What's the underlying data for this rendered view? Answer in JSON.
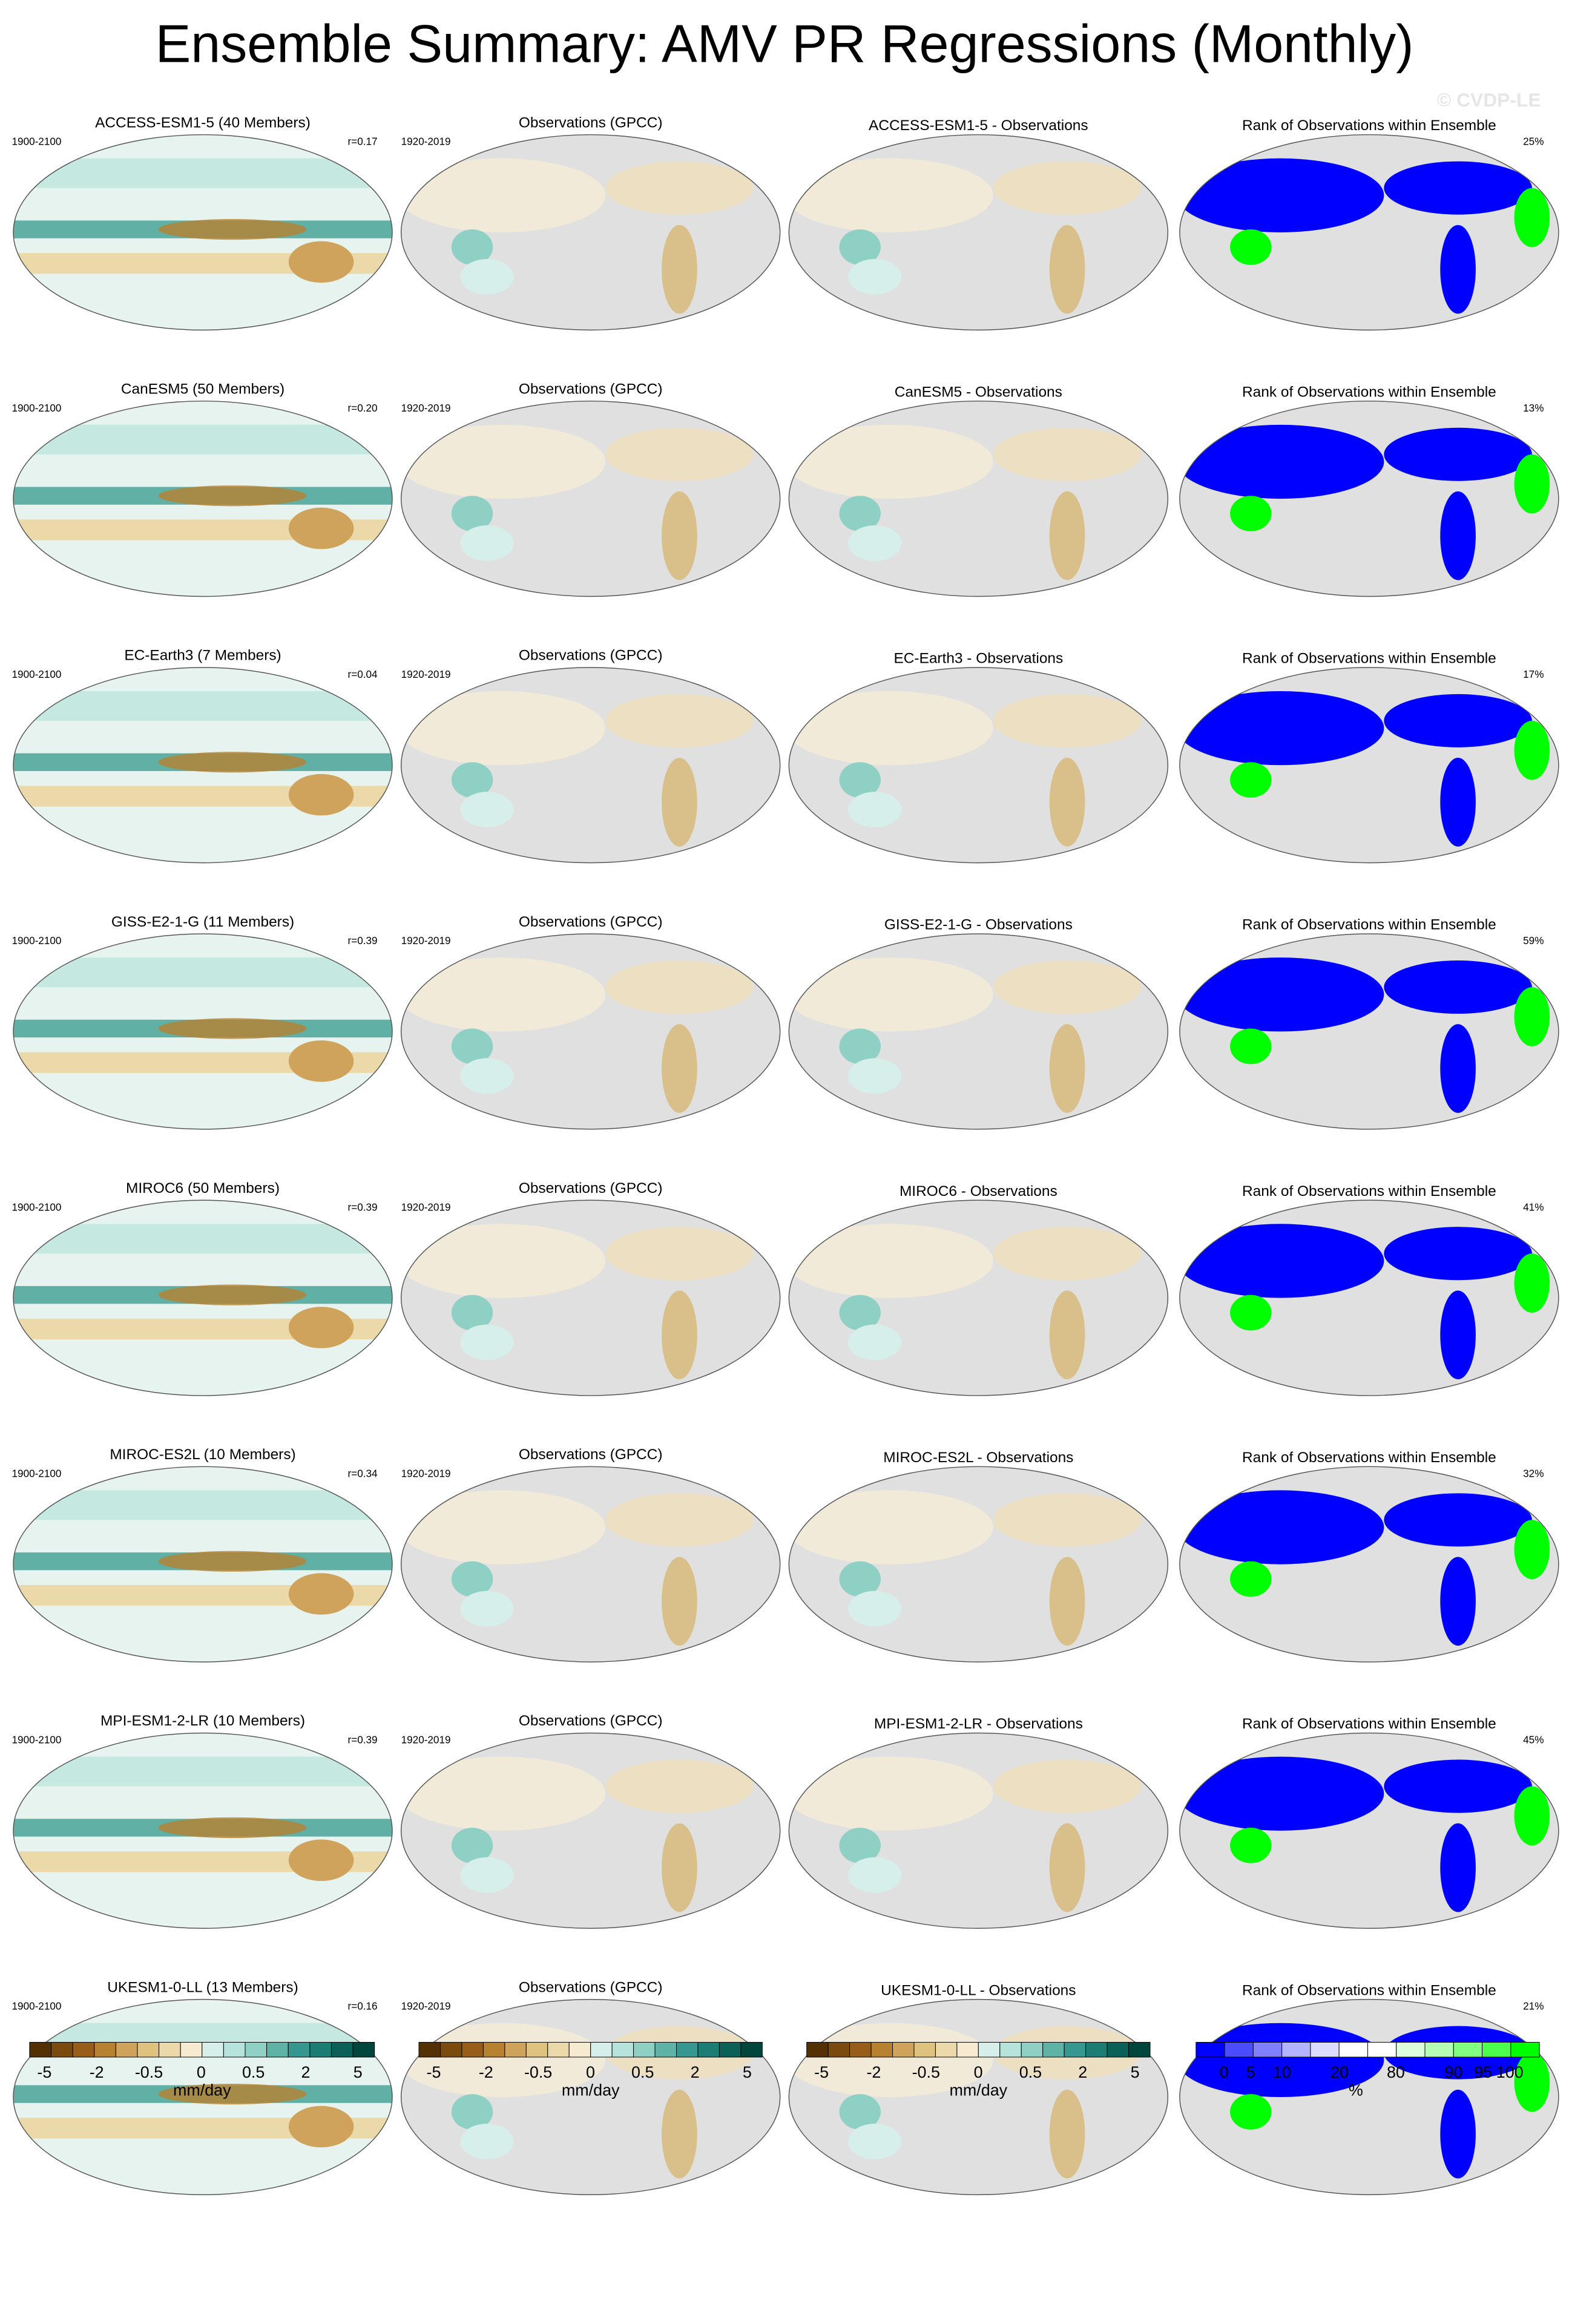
{
  "title": "Ensemble Summary: AMV PR Regressions (Monthly)",
  "watermark": "© CVDP-LE",
  "rows": [
    {
      "model_title": "ACCESS-ESM1-5 (40 Members)",
      "model_years": "1900-2100",
      "r": "r=0.17",
      "obs_title": "Observations (GPCC)",
      "obs_years": "1920-2019",
      "diff_title": "ACCESS-ESM1-5 - Observations",
      "rank_title": "Rank of Observations within Ensemble",
      "rank_pct": "25%"
    },
    {
      "model_title": "CanESM5 (50 Members)",
      "model_years": "1900-2100",
      "r": "r=0.20",
      "obs_title": "Observations (GPCC)",
      "obs_years": "1920-2019",
      "diff_title": "CanESM5 - Observations",
      "rank_title": "Rank of Observations within Ensemble",
      "rank_pct": "13%"
    },
    {
      "model_title": "EC-Earth3 (7 Members)",
      "model_years": "1900-2100",
      "r": "r=0.04",
      "obs_title": "Observations (GPCC)",
      "obs_years": "1920-2019",
      "diff_title": "EC-Earth3 - Observations",
      "rank_title": "Rank of Observations within Ensemble",
      "rank_pct": "17%"
    },
    {
      "model_title": "GISS-E2-1-G (11 Members)",
      "model_years": "1900-2100",
      "r": "r=0.39",
      "obs_title": "Observations (GPCC)",
      "obs_years": "1920-2019",
      "diff_title": "GISS-E2-1-G - Observations",
      "rank_title": "Rank of Observations within Ensemble",
      "rank_pct": "59%"
    },
    {
      "model_title": "MIROC6 (50 Members)",
      "model_years": "1900-2100",
      "r": "r=0.39",
      "obs_title": "Observations (GPCC)",
      "obs_years": "1920-2019",
      "diff_title": "MIROC6 - Observations",
      "rank_title": "Rank of Observations within Ensemble",
      "rank_pct": "41%"
    },
    {
      "model_title": "MIROC-ES2L (10 Members)",
      "model_years": "1900-2100",
      "r": "r=0.34",
      "obs_title": "Observations (GPCC)",
      "obs_years": "1920-2019",
      "diff_title": "MIROC-ES2L - Observations",
      "rank_title": "Rank of Observations within Ensemble",
      "rank_pct": "32%"
    },
    {
      "model_title": "MPI-ESM1-2-LR (10 Members)",
      "model_years": "1900-2100",
      "r": "r=0.39",
      "obs_title": "Observations (GPCC)",
      "obs_years": "1920-2019",
      "diff_title": "MPI-ESM1-2-LR - Observations",
      "rank_title": "Rank of Observations within Ensemble",
      "rank_pct": "45%"
    },
    {
      "model_title": "UKESM1-0-LL (13 Members)",
      "model_years": "1900-2100",
      "r": "r=0.16",
      "obs_title": "Observations (GPCC)",
      "obs_years": "1920-2019",
      "diff_title": "UKESM1-0-LL - Observations",
      "rank_title": "Rank of Observations within Ensemble",
      "rank_pct": "21%"
    }
  ],
  "colorbars": [
    {
      "labels": [
        "-5",
        "-2",
        "-0.5",
        "0",
        "0.5",
        "2",
        "5"
      ],
      "unit": "mm/day",
      "colors": [
        "#543005",
        "#7a4a0f",
        "#995d1a",
        "#b8812f",
        "#cfa35c",
        "#dfc27d",
        "#ecd9a9",
        "#f6ead0",
        "#d7efea",
        "#b6e3dc",
        "#8fd0c4",
        "#5fb3a6",
        "#35978f",
        "#1c7d74",
        "#0b6158",
        "#01463c"
      ]
    },
    {
      "labels": [
        "-5",
        "-2",
        "-0.5",
        "0",
        "0.5",
        "2",
        "5"
      ],
      "unit": "mm/day",
      "colors": [
        "#543005",
        "#7a4a0f",
        "#995d1a",
        "#b8812f",
        "#cfa35c",
        "#dfc27d",
        "#ecd9a9",
        "#f6ead0",
        "#d7efea",
        "#b6e3dc",
        "#8fd0c4",
        "#5fb3a6",
        "#35978f",
        "#1c7d74",
        "#0b6158",
        "#01463c"
      ]
    },
    {
      "labels": [
        "-5",
        "-2",
        "-0.5",
        "0",
        "0.5",
        "2",
        "5"
      ],
      "unit": "mm/day",
      "colors": [
        "#543005",
        "#7a4a0f",
        "#995d1a",
        "#b8812f",
        "#cfa35c",
        "#dfc27d",
        "#ecd9a9",
        "#f6ead0",
        "#d7efea",
        "#b6e3dc",
        "#8fd0c4",
        "#5fb3a6",
        "#35978f",
        "#1c7d74",
        "#0b6158",
        "#01463c"
      ]
    },
    {
      "labels": [
        "0",
        "5",
        "10",
        "20",
        "80",
        "90",
        "95",
        "100"
      ],
      "unit": "%",
      "colors": [
        "#0000ff",
        "#4c4cff",
        "#8080ff",
        "#b3b3ff",
        "#dcdcff",
        "#ffffff",
        "#ffffff",
        "#dcffdc",
        "#b3ffb3",
        "#80ff80",
        "#4cff4c",
        "#00ff00"
      ]
    }
  ]
}
